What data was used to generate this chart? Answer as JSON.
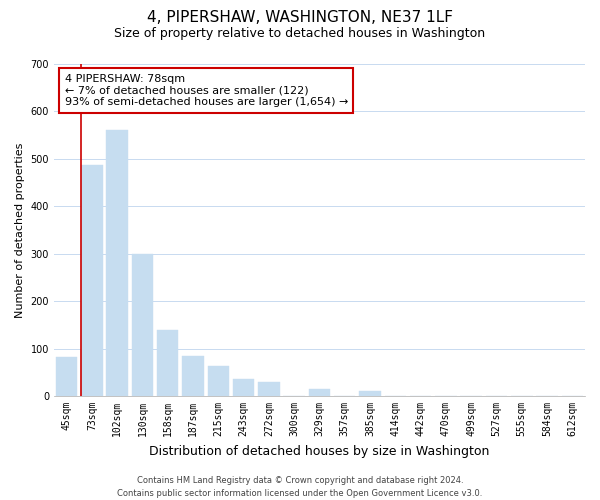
{
  "title": "4, PIPERSHAW, WASHINGTON, NE37 1LF",
  "subtitle": "Size of property relative to detached houses in Washington",
  "xlabel": "Distribution of detached houses by size in Washington",
  "ylabel": "Number of detached properties",
  "bar_labels": [
    "45sqm",
    "73sqm",
    "102sqm",
    "130sqm",
    "158sqm",
    "187sqm",
    "215sqm",
    "243sqm",
    "272sqm",
    "300sqm",
    "329sqm",
    "357sqm",
    "385sqm",
    "414sqm",
    "442sqm",
    "470sqm",
    "499sqm",
    "527sqm",
    "555sqm",
    "584sqm",
    "612sqm"
  ],
  "bar_values": [
    83,
    488,
    560,
    300,
    139,
    85,
    63,
    35,
    30,
    0,
    15,
    0,
    11,
    0,
    0,
    0,
    0,
    0,
    0,
    0,
    0
  ],
  "bar_color": "#c6ddf0",
  "bar_edge_color": "#c6ddf0",
  "marker_line_color": "#cc0000",
  "ylim": [
    0,
    700
  ],
  "yticks": [
    0,
    100,
    200,
    300,
    400,
    500,
    600,
    700
  ],
  "annotation_box_text": "4 PIPERSHAW: 78sqm\n← 7% of detached houses are smaller (122)\n93% of semi-detached houses are larger (1,654) →",
  "footer_line1": "Contains HM Land Registry data © Crown copyright and database right 2024.",
  "footer_line2": "Contains public sector information licensed under the Open Government Licence v3.0.",
  "bg_color": "#ffffff",
  "grid_color": "#c8daf0",
  "title_fontsize": 11,
  "subtitle_fontsize": 9,
  "xlabel_fontsize": 9,
  "ylabel_fontsize": 8,
  "tick_fontsize": 7,
  "footer_fontsize": 6,
  "ann_fontsize": 8
}
